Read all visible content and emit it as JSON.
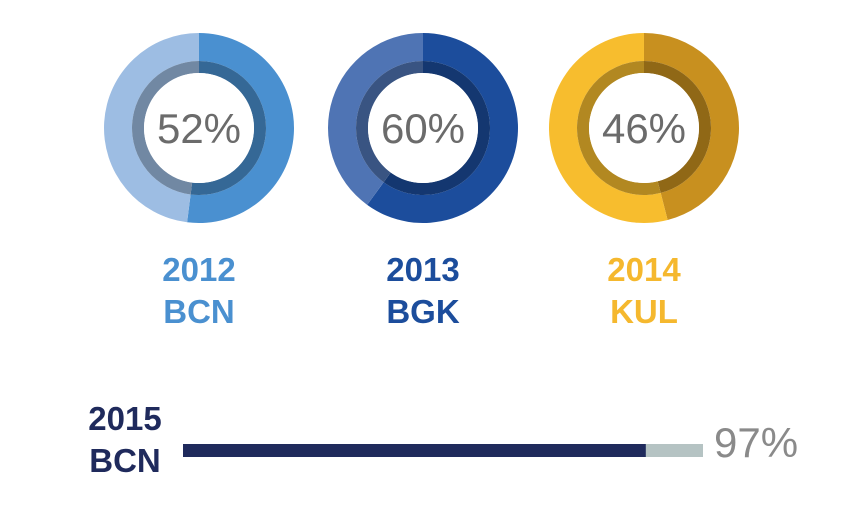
{
  "chart_data": [
    {
      "type": "pie",
      "style": "donut",
      "label_lines": [
        "2012",
        "BCN"
      ],
      "value_label": "52%",
      "slices": [
        {
          "value": 52,
          "color": "#4a90d0"
        },
        {
          "value": 48,
          "color": "#9dbde3"
        }
      ],
      "accent": "#4a90d0"
    },
    {
      "type": "pie",
      "style": "donut",
      "label_lines": [
        "2013",
        "BGK"
      ],
      "value_label": "60%",
      "slices": [
        {
          "value": 60,
          "color": "#1c4d9c"
        },
        {
          "value": 40,
          "color": "#4f74b4"
        }
      ],
      "accent": "#1c4d9c"
    },
    {
      "type": "pie",
      "style": "donut",
      "label_lines": [
        "2014",
        "KUL"
      ],
      "value_label": "46%",
      "slices": [
        {
          "value": 46,
          "color": "#c8901f"
        },
        {
          "value": 54,
          "color": "#f7bd2e"
        }
      ],
      "accent": "#f5b82e"
    },
    {
      "type": "bar",
      "orientation": "horizontal",
      "label_lines": [
        "2015",
        "BCN"
      ],
      "value_label": "97%",
      "value": 97,
      "max": 100,
      "colors": {
        "fill": "#1f2a5c",
        "track": "#b5c3c3",
        "label": "#1f2a5c"
      }
    }
  ]
}
